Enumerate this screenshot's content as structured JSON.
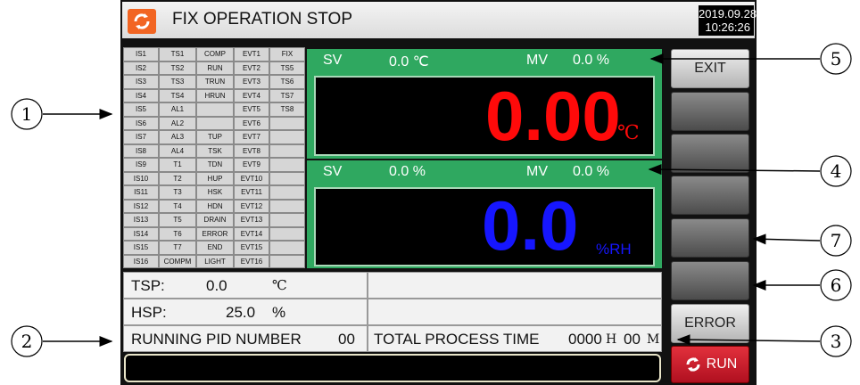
{
  "title_bar": {
    "title": "FIX OPERATION STOP",
    "date": "2019.09.28",
    "time": "10:26:26"
  },
  "status_grid": {
    "rows": [
      [
        "IS1",
        "TS1",
        "COMP",
        "EVT1",
        "FIX"
      ],
      [
        "IS2",
        "TS2",
        "RUN",
        "EVT2",
        "TS5"
      ],
      [
        "IS3",
        "TS3",
        "TRUN",
        "EVT3",
        "TS6"
      ],
      [
        "IS4",
        "TS4",
        "HRUN",
        "EVT4",
        "TS7"
      ],
      [
        "IS5",
        "AL1",
        null,
        "EVT5",
        "TS8"
      ],
      [
        "IS6",
        "AL2",
        null,
        "EVT6",
        null
      ],
      [
        "IS7",
        "AL3",
        "TUP",
        "EVT7",
        null
      ],
      [
        "IS8",
        "AL4",
        "TSK",
        "EVT8",
        null
      ],
      [
        "IS9",
        "T1",
        "TDN",
        "EVT9",
        null
      ],
      [
        "IS10",
        "T2",
        "HUP",
        "EVT10",
        null
      ],
      [
        "IS11",
        "T3",
        "HSK",
        "EVT11",
        null
      ],
      [
        "IS12",
        "T4",
        "HDN",
        "EVT12",
        null
      ],
      [
        "IS13",
        "T5",
        "DRAIN",
        "EVT13",
        null
      ],
      [
        "IS14",
        "T6",
        "ERROR",
        "EVT14",
        null
      ],
      [
        "IS15",
        "T7",
        "END",
        "EVT15",
        null
      ],
      [
        "IS16",
        "COMPM",
        "LIGHT",
        "EVT16",
        null
      ]
    ]
  },
  "temperature_panel": {
    "sv_label": "SV",
    "sv_value": "0.0 ℃",
    "mv_label": "MV",
    "mv_value": "0.0 %",
    "reading": "0.00",
    "unit": "℃"
  },
  "humidity_panel": {
    "sv_label": "SV",
    "sv_value": "0.0 %",
    "mv_label": "MV",
    "mv_value": "0.0 %",
    "reading": "0.0",
    "unit": "%RH"
  },
  "buttons": {
    "exit": "EXIT",
    "error": "ERROR",
    "run": "RUN"
  },
  "info": {
    "tsp_label": "TSP:",
    "tsp_value": "0.0",
    "tsp_unit": "℃",
    "hsp_label": "HSP:",
    "hsp_value": "25.0",
    "hsp_unit": "%",
    "pid_label": "RUNNING PID NUMBER",
    "pid_value": "00",
    "time_label": "TOTAL PROCESS TIME",
    "hours": "0000",
    "hours_unit": "H",
    "minutes": "00",
    "minutes_unit": "M"
  },
  "callouts": [
    "1",
    "2",
    "3",
    "4",
    "5",
    "6",
    "7"
  ]
}
